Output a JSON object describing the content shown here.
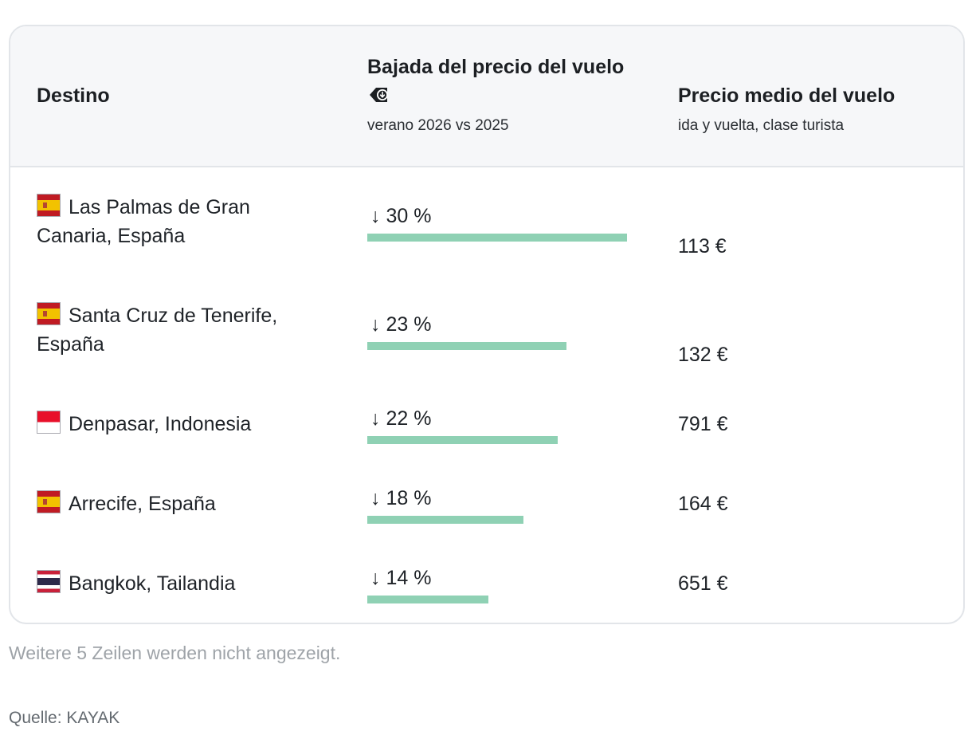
{
  "table": {
    "headers": {
      "destination": "Destino",
      "drop_title": "Bajada del precio del vuelo",
      "drop_subtitle": "verano 2026 vs 2025",
      "price_title": "Precio medio del vuelo",
      "price_subtitle": "ida y vuelta, clase turista"
    },
    "rows": [
      {
        "destination": "Las Palmas de Gran Canaria, España",
        "flag": "spain-flag",
        "drop_label": "↓ 30 %",
        "drop_value": 30,
        "price": "113 €"
      },
      {
        "destination": "Santa Cruz de Tenerife, España",
        "flag": "spain-flag",
        "drop_label": "↓ 23 %",
        "drop_value": 23,
        "price": "132 €"
      },
      {
        "destination": "Denpasar, Indonesia",
        "flag": "indonesia-flag",
        "drop_label": "↓ 22 %",
        "drop_value": 22,
        "price": "791 €"
      },
      {
        "destination": "Arrecife, España",
        "flag": "spain-flag",
        "drop_label": "↓ 18 %",
        "drop_value": 18,
        "price": "164 €"
      },
      {
        "destination": "Bangkok, Tailandia",
        "flag": "thailand-flag",
        "drop_label": "↓ 14 %",
        "drop_value": 14,
        "price": "651 €"
      }
    ]
  },
  "footer": {
    "note": "Weitere 5 Zeilen werden nicht angezeigt.",
    "source": "Quelle: KAYAK"
  },
  "colors": {
    "bar": "#8fd1b4",
    "header_bg": "#f6f7f9",
    "border": "#e2e5e9"
  },
  "chart_data": {
    "type": "table",
    "columns": [
      "Destino",
      "Bajada del precio del vuelo",
      "Precio medio del vuelo"
    ],
    "categories": [
      "Las Palmas de Gran Canaria, España",
      "Santa Cruz de Tenerife, España",
      "Denpasar, Indonesia",
      "Arrecife, España",
      "Bangkok, Tailandia"
    ],
    "series": [
      {
        "name": "Bajada del precio del vuelo",
        "values": [
          30,
          23,
          22,
          18,
          14
        ]
      },
      {
        "name": "Precio medio del vuelo",
        "values": [
          113,
          132,
          791,
          164,
          651
        ]
      }
    ]
  }
}
